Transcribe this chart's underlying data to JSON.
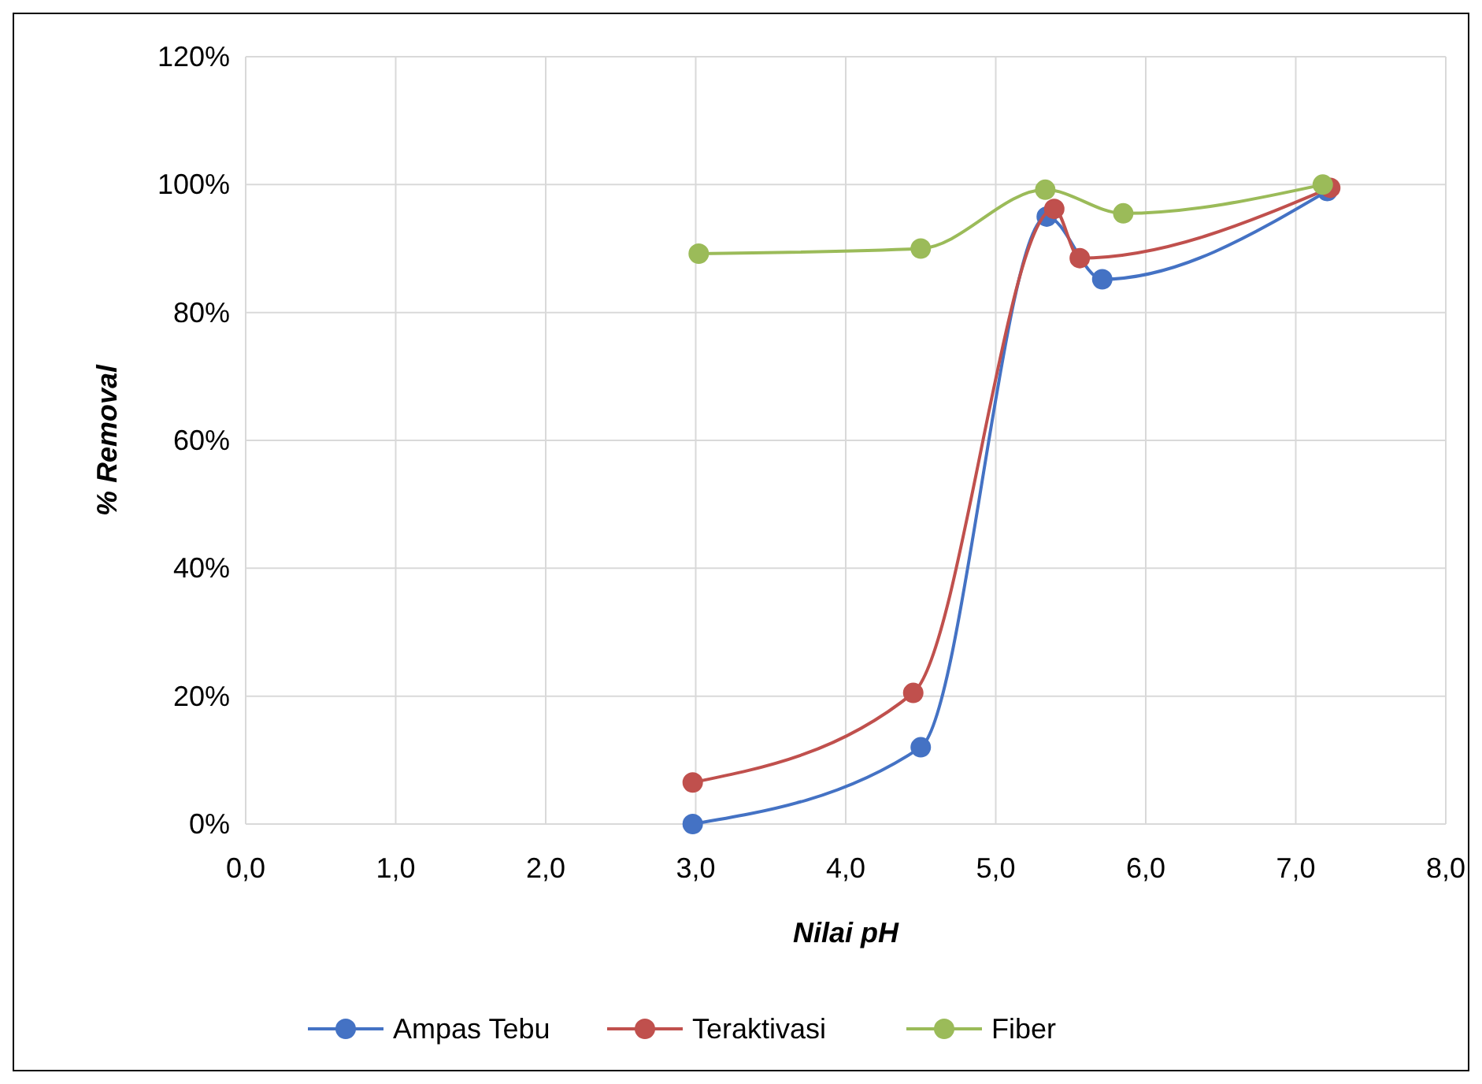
{
  "chart_data": {
    "type": "line",
    "xlabel": "Nilai pH",
    "ylabel": "% Removal",
    "xlim": [
      0,
      8
    ],
    "xticks": [
      {
        "value": 0,
        "label": "0,0"
      },
      {
        "value": 1,
        "label": "1,0"
      },
      {
        "value": 2,
        "label": "2,0"
      },
      {
        "value": 3,
        "label": "3,0"
      },
      {
        "value": 4,
        "label": "4,0"
      },
      {
        "value": 5,
        "label": "5,0"
      },
      {
        "value": 6,
        "label": "6,0"
      },
      {
        "value": 7,
        "label": "7,0"
      },
      {
        "value": 8,
        "label": "8,0"
      }
    ],
    "ylim": [
      0,
      120
    ],
    "yticks": [
      {
        "value": 0,
        "label": "0%"
      },
      {
        "value": 20,
        "label": "20%"
      },
      {
        "value": 40,
        "label": "40%"
      },
      {
        "value": 60,
        "label": "60%"
      },
      {
        "value": 80,
        "label": "80%"
      },
      {
        "value": 100,
        "label": "100%"
      },
      {
        "value": 120,
        "label": "120%"
      }
    ],
    "grid": true,
    "legend": "bottom",
    "marker": "circle",
    "line_style": "solid",
    "series": [
      {
        "name": "Ampas Tebu",
        "color": "#4472c4",
        "x": [
          2.98,
          4.5,
          5.34,
          5.71,
          7.21
        ],
        "values": [
          0,
          12,
          95,
          85.2,
          99
        ]
      },
      {
        "name": "Teraktivasi",
        "color": "#c0504d",
        "x": [
          2.98,
          4.45,
          5.39,
          5.56,
          7.23
        ],
        "values": [
          6.5,
          20.5,
          96.2,
          88.5,
          99.5
        ]
      },
      {
        "name": "Fiber",
        "color": "#9bbb59",
        "x": [
          3.02,
          4.5,
          5.33,
          5.85,
          7.18
        ],
        "values": [
          89.2,
          90,
          99.2,
          95.5,
          100
        ]
      }
    ]
  }
}
